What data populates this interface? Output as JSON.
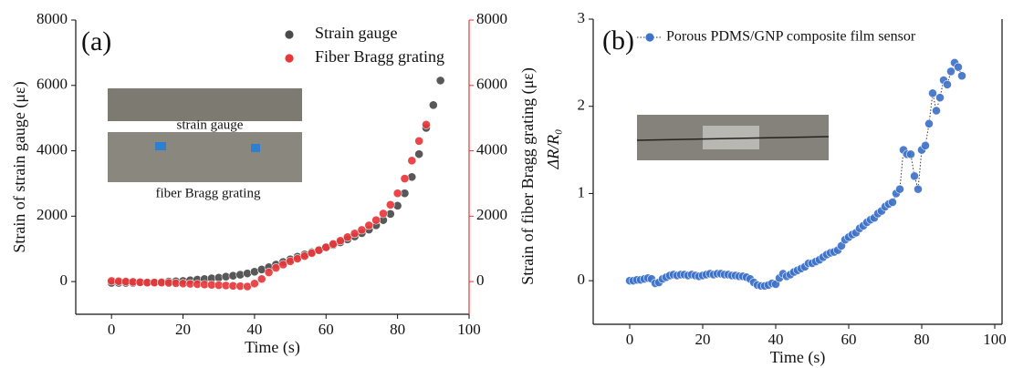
{
  "chart_data": [
    {
      "type": "scatter",
      "panel_label": "(a)",
      "xlabel": "Time (s)",
      "ylabel": "Strain of strain gauge (με)",
      "y2label": "Strain of fiber Bragg grating (με)",
      "xlim": [
        -10,
        100
      ],
      "xticks": [
        0,
        20,
        40,
        60,
        80,
        100
      ],
      "ylim": [
        -1000,
        8000
      ],
      "yticks": [
        0,
        2000,
        4000,
        6000,
        8000
      ],
      "y2lim": [
        -1000,
        8000
      ],
      "y2ticks": [
        0,
        2000,
        4000,
        6000,
        8000
      ],
      "y2color": "#e8383a",
      "legend": "upper-right",
      "inset_labels": [
        "strain gauge",
        "fiber Bragg grating"
      ],
      "x": [
        0,
        2,
        4,
        6,
        8,
        10,
        12,
        14,
        16,
        18,
        20,
        22,
        24,
        26,
        28,
        30,
        32,
        34,
        36,
        38,
        40,
        42,
        44,
        46,
        48,
        50,
        52,
        54,
        56,
        58,
        60,
        62,
        64,
        66,
        68,
        70,
        72,
        74,
        76,
        78,
        80,
        82,
        84,
        86,
        88,
        90,
        92
      ],
      "series": [
        {
          "name": "Strain gauge",
          "color": "#4a4a4a",
          "values": [
            -40,
            -40,
            -40,
            -40,
            -35,
            -30,
            -20,
            -10,
            0,
            10,
            20,
            40,
            60,
            80,
            100,
            120,
            150,
            180,
            210,
            250,
            300,
            370,
            440,
            520,
            600,
            680,
            760,
            830,
            900,
            970,
            1040,
            1120,
            1200,
            1290,
            1380,
            1480,
            1590,
            1720,
            1880,
            2070,
            2320,
            2700,
            3200,
            3900,
            4700,
            5400,
            6150
          ]
        },
        {
          "name": "Fiber Bragg grating",
          "color": "#e8383a",
          "axis": "y2",
          "values": [
            20,
            10,
            0,
            -10,
            -20,
            -30,
            -30,
            -30,
            -40,
            -50,
            -60,
            -70,
            -80,
            -90,
            -100,
            -110,
            -120,
            -130,
            -140,
            -150,
            -60,
            80,
            280,
            420,
            520,
            620,
            700,
            780,
            870,
            960,
            1050,
            1150,
            1250,
            1360,
            1470,
            1580,
            1720,
            1880,
            2080,
            2350,
            2700,
            3150,
            3700,
            4300,
            4800,
            null,
            null
          ]
        }
      ]
    },
    {
      "type": "scatter",
      "panel_label": "(b)",
      "xlabel": "Time (s)",
      "ylabel": "ΔR/R₀",
      "xlim": [
        -10,
        102
      ],
      "xticks": [
        0,
        20,
        40,
        60,
        80,
        100
      ],
      "ylim": [
        -0.5,
        3
      ],
      "yticks": [
        0,
        1,
        2,
        3
      ],
      "legend": "upper-left",
      "x": [
        0,
        1,
        2,
        3,
        4,
        5,
        6,
        7,
        8,
        9,
        10,
        11,
        12,
        13,
        14,
        15,
        16,
        17,
        18,
        19,
        20,
        21,
        22,
        23,
        24,
        25,
        26,
        27,
        28,
        29,
        30,
        31,
        32,
        33,
        34,
        35,
        36,
        37,
        38,
        39,
        40,
        41,
        42,
        43,
        44,
        45,
        46,
        47,
        48,
        49,
        50,
        51,
        52,
        53,
        54,
        55,
        56,
        57,
        58,
        59,
        60,
        61,
        62,
        63,
        64,
        65,
        66,
        67,
        68,
        69,
        70,
        71,
        72,
        73,
        74,
        75,
        76,
        77,
        78,
        79,
        80,
        81,
        82,
        83,
        84,
        85,
        86,
        87,
        88,
        89,
        90,
        91
      ],
      "series": [
        {
          "name": "Porous PDMS/GNP composite film sensor",
          "color": "#3f73c8",
          "line": "dotted",
          "values": [
            0,
            0,
            0.01,
            0.01,
            0.02,
            0.03,
            0.02,
            -0.03,
            -0.02,
            0.02,
            0.04,
            0.06,
            0.07,
            0.06,
            0.07,
            0.07,
            0.06,
            0.07,
            0.06,
            0.05,
            0.06,
            0.07,
            0.08,
            0.07,
            0.08,
            0.08,
            0.07,
            0.07,
            0.06,
            0.06,
            0.05,
            0.05,
            0.04,
            0.02,
            -0.02,
            -0.05,
            -0.06,
            -0.06,
            -0.05,
            -0.03,
            -0.04,
            0.03,
            0.08,
            0.05,
            0.07,
            0.1,
            0.12,
            0.14,
            0.16,
            0.2,
            0.2,
            0.22,
            0.24,
            0.27,
            0.3,
            0.32,
            0.33,
            0.35,
            0.4,
            0.47,
            0.5,
            0.53,
            0.55,
            0.6,
            0.63,
            0.67,
            0.7,
            0.72,
            0.77,
            0.8,
            0.85,
            0.88,
            0.9,
            1.0,
            1.05,
            1.5,
            1.45,
            1.45,
            1.2,
            1.05,
            1.5,
            1.55,
            1.8,
            2.15,
            1.95,
            2.1,
            2.3,
            2.25,
            2.4,
            2.5,
            2.45,
            2.35
          ]
        }
      ]
    }
  ]
}
